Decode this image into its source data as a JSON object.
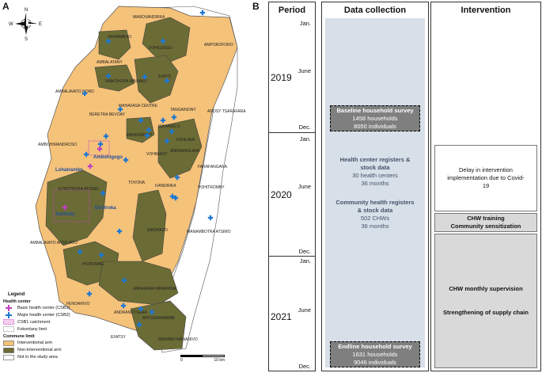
{
  "panel_a": {
    "letter": "A",
    "compass": {
      "n": "N",
      "s": "S",
      "e": "E",
      "w": "W"
    },
    "communes": [
      "MAROVANDRIKA",
      "SAHAMADIO",
      "VOHILENGO",
      "AMPOROFORO",
      "AMBALATANY",
      "EVATO",
      "NAMOHORA IABOAKO",
      "AMBALAVATO NORD",
      "MAHAFASA CENTRE",
      "TANGAINONY",
      "ANOSY TSARAFARA",
      "BERETRA BEVOAY",
      "MAHAVELO",
      "AMBOHIMANDROSO",
      "MAHERIRATY",
      "VOHILAVA",
      "VOHIMASY",
      "ANDRANOLAVA",
      "FARAFANGANA",
      "VOHITROMBY",
      "TOVONA",
      "IVANDRIKA",
      "ETROTROKA ATSIMO",
      "IABOHAZO",
      "MANAMBOTRA ATSIMO",
      "AMBALAVATO ANTEVATO",
      "IHOROMBE",
      "ANKARANA MIRAIHINA",
      "FENOARIVO",
      "ANTSERANAMBE",
      "EFATSY",
      "MAHABO MANANIVO",
      "ANDRANOTSARA"
    ],
    "places": [
      {
        "name": "Ambohigogo",
        "color": "#1f4e9c"
      },
      {
        "name": "Lohatrambo",
        "color": "#1f4e9c"
      },
      {
        "name": "Sahiloky",
        "color": "#1f4e9c"
      },
      {
        "name": "Etrotroka",
        "color": "#1f4e9c"
      }
    ],
    "legend": {
      "title": "Legend",
      "health_center_title": "Health center",
      "items_health": [
        {
          "label": "Basic health center (CSB1)",
          "color": "#c040c0"
        },
        {
          "label": "Major health center (CSB2)",
          "color": "#1e78d2"
        },
        {
          "label": "CSB1 catchment",
          "color": "#c040c0"
        },
        {
          "label": "Fokontany limit",
          "color": "#b0b0b0"
        }
      ],
      "commune_limit_title": "Commune limit",
      "items_commune": [
        {
          "label": "Interventional arm",
          "color": "#f5c27a"
        },
        {
          "label": "Non-interventional arm",
          "color": "#6b6b35"
        },
        {
          "label": "Not in the study area",
          "color": "#ffffff"
        }
      ]
    },
    "scale": {
      "start": "0",
      "end": "10 km"
    },
    "colors": {
      "interventional": "#f5c27a",
      "non_interventional": "#6b6b35",
      "outside": "#ffffff",
      "csb2": "#1e78d2",
      "csb1": "#c040c0"
    }
  },
  "panel_b": {
    "letter": "B",
    "headers": {
      "period": "Period",
      "data": "Data collection",
      "intervention": "Intervention"
    },
    "years": [
      {
        "year": "2019",
        "months": [
          "Jan.",
          "June",
          "Dec."
        ]
      },
      {
        "year": "2020",
        "months": [
          "Jan.",
          "June",
          "Dec."
        ]
      },
      {
        "year": "2021",
        "months": [
          "Jan.",
          "June",
          "Dec."
        ]
      }
    ],
    "baseline": {
      "title": "Baseline household survey",
      "line1": "1458 households",
      "line2": "8050 individuals"
    },
    "registers": {
      "title1": "Health center registers &",
      "title2": "stock data",
      "line1": "30 health centers",
      "line2": "36 months"
    },
    "community": {
      "title1": "Community health registers",
      "title2": "& stock data",
      "line1": "502 CHWs",
      "line2": "36 months"
    },
    "endline": {
      "title": "Endline household survey",
      "line1": "1631 households",
      "line2": "9046 individuals"
    },
    "interventions": {
      "delay": "Delay in intervention implementation due to Covid-19",
      "training": "CHW training",
      "sensitization": "Community sensitization",
      "supervision": "CHW monthly supervision",
      "supply": "Strengthening of supply chain"
    }
  }
}
